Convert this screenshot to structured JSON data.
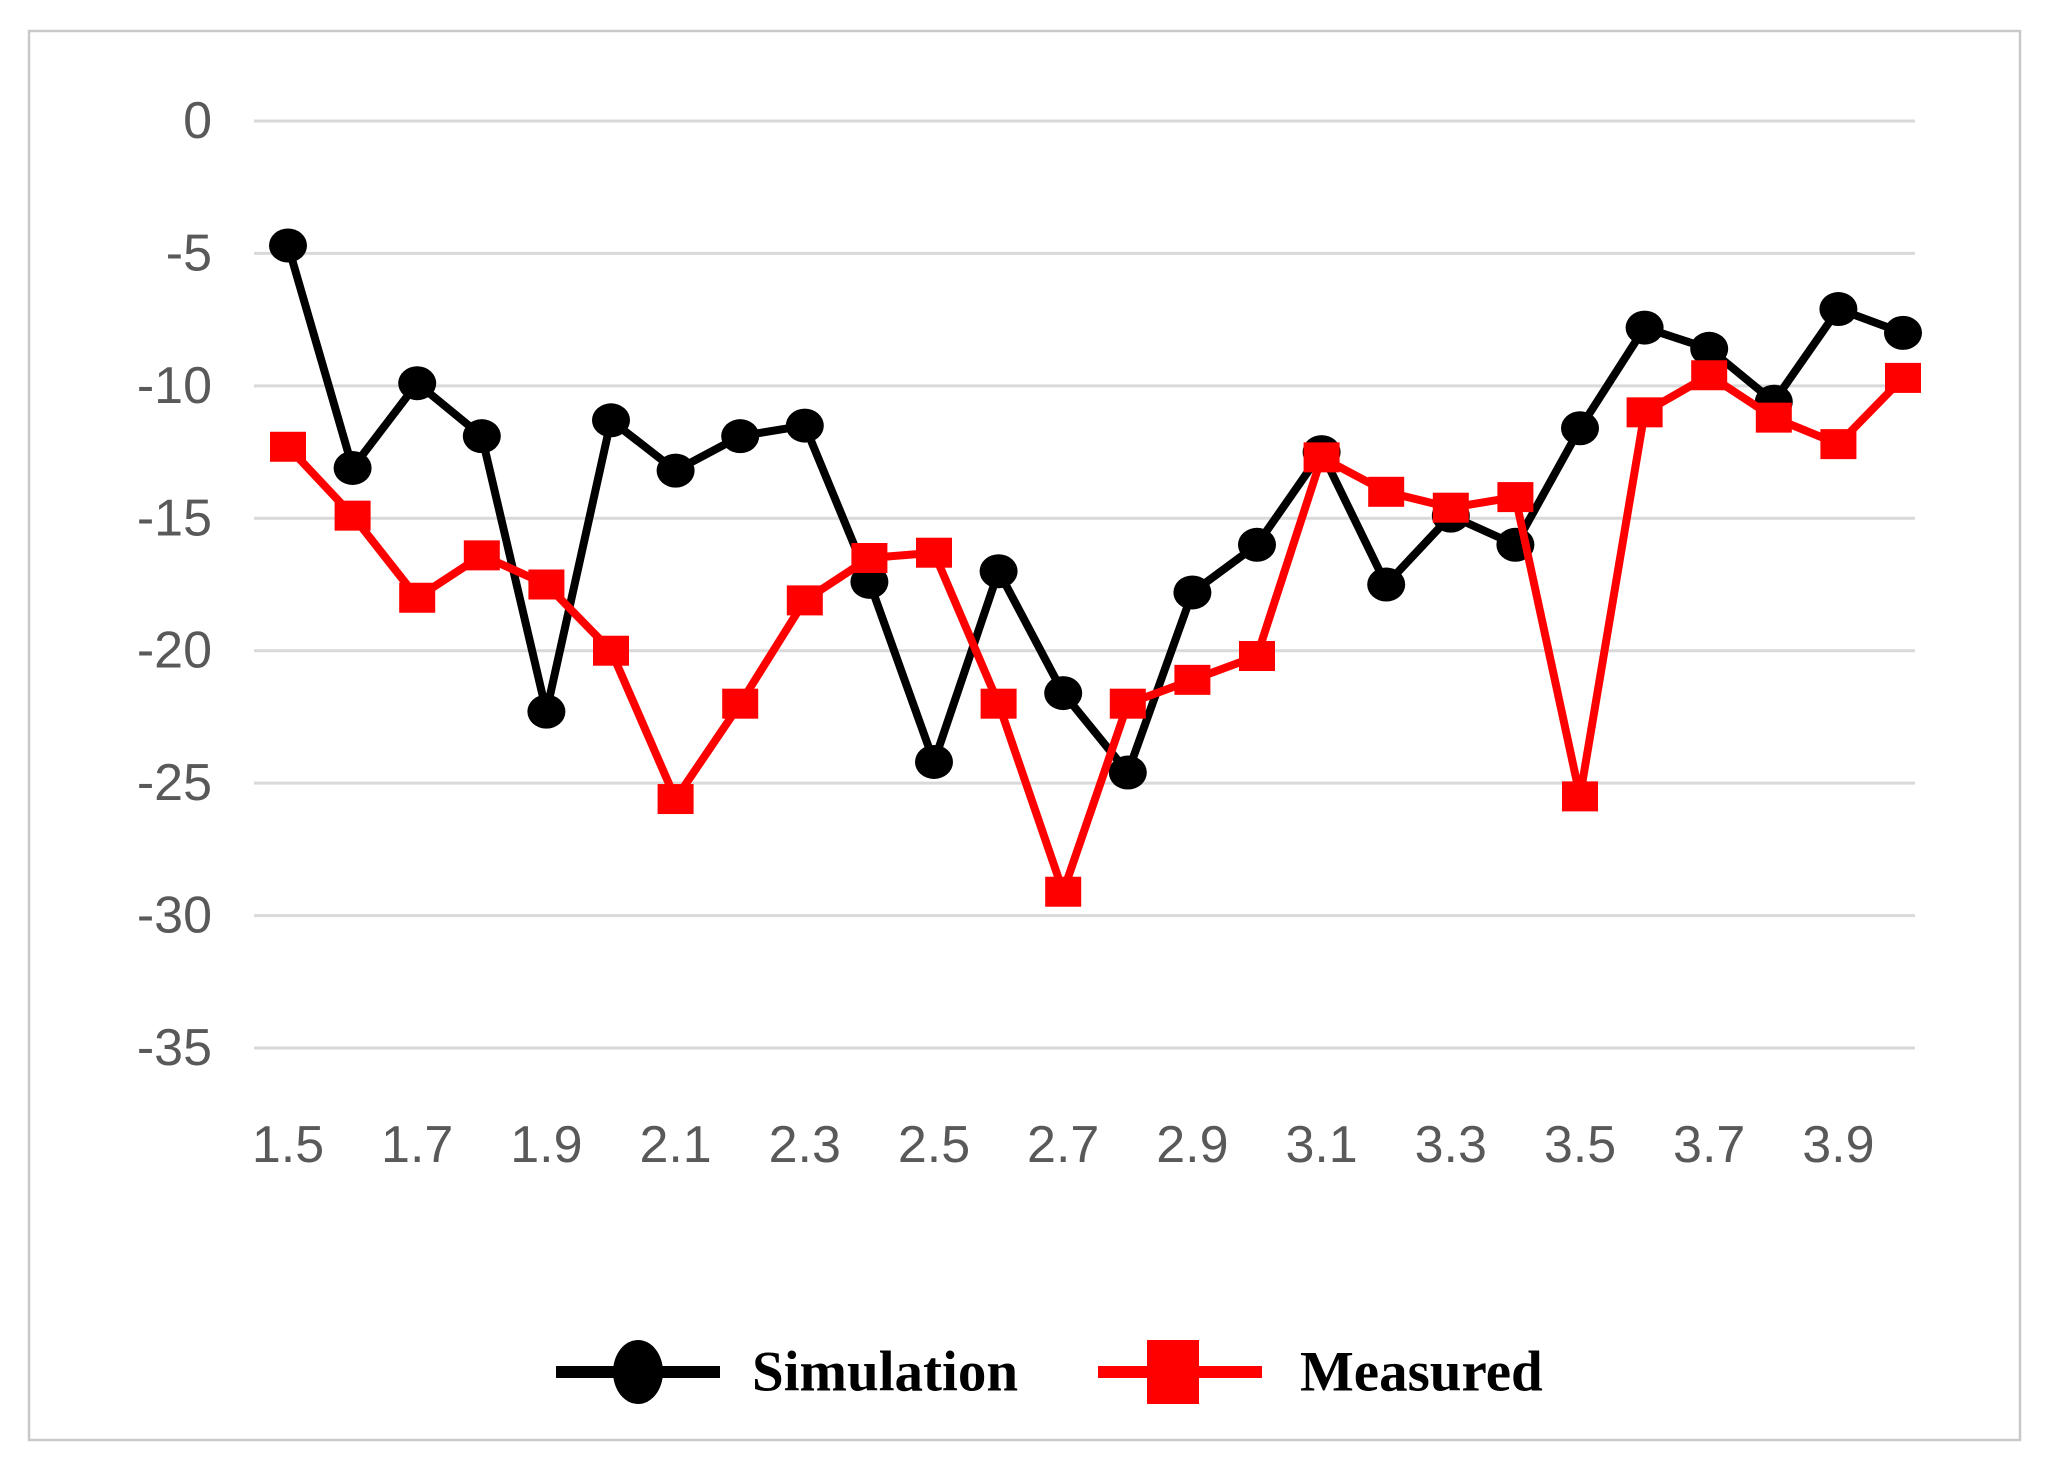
{
  "figure": {
    "background_color": "#ffffff",
    "border_color": "#c9c9c9"
  },
  "legend": {
    "items": [
      {
        "label": "Simulation",
        "color": "#000000",
        "marker": "circle"
      },
      {
        "label": "Measured",
        "color": "#ff0000",
        "marker": "square"
      }
    ]
  },
  "chart_data": {
    "type": "line",
    "title": "",
    "xlabel": "",
    "ylabel": "",
    "ylim": [
      -35,
      0
    ],
    "grid": "horizontal",
    "gridline_color": "#d9d9d9",
    "axis_label_color": "#595959",
    "legend_position": "bottom",
    "y_ticks": [
      0,
      -5,
      -10,
      -15,
      -20,
      -25,
      -30,
      -35
    ],
    "y_tick_labels": [
      "0",
      "-5",
      "-10",
      "-15",
      "-20",
      "-25",
      "-30",
      "-35"
    ],
    "x": [
      1.5,
      1.6,
      1.7,
      1.8,
      1.9,
      2.0,
      2.1,
      2.2,
      2.3,
      2.4,
      2.5,
      2.6,
      2.7,
      2.8,
      2.9,
      3.0,
      3.1,
      3.2,
      3.3,
      3.4,
      3.5,
      3.6,
      3.7,
      3.8,
      3.9,
      4.0
    ],
    "x_tick_labels": [
      "1.5",
      "1.7",
      "1.9",
      "2.1",
      "2.3",
      "2.5",
      "2.7",
      "2.9",
      "3.1",
      "3.3",
      "3.5",
      "3.7",
      "3.9"
    ],
    "series": [
      {
        "name": "Simulation",
        "color": "#000000",
        "marker": "circle",
        "values": [
          -4.7,
          -13.1,
          -9.9,
          -11.9,
          -22.3,
          -11.3,
          -13.2,
          -11.9,
          -11.5,
          -17.4,
          -24.2,
          -17.0,
          -21.6,
          -24.6,
          -17.8,
          -16.0,
          -12.5,
          -17.5,
          -14.9,
          -16.0,
          -11.6,
          -7.8,
          -8.6,
          -10.6,
          -7.1,
          -8.0
        ]
      },
      {
        "name": "Measured",
        "color": "#ff0000",
        "marker": "square",
        "values": [
          -12.3,
          -14.9,
          -18.0,
          -16.4,
          -17.5,
          -20.0,
          -25.6,
          -22.0,
          -18.1,
          -16.5,
          -16.3,
          -22.0,
          -29.1,
          -22.0,
          -21.1,
          -20.2,
          -12.7,
          -14.0,
          -14.6,
          -14.2,
          -25.5,
          -11.0,
          -9.6,
          -11.2,
          -12.2,
          -9.7
        ]
      }
    ]
  }
}
